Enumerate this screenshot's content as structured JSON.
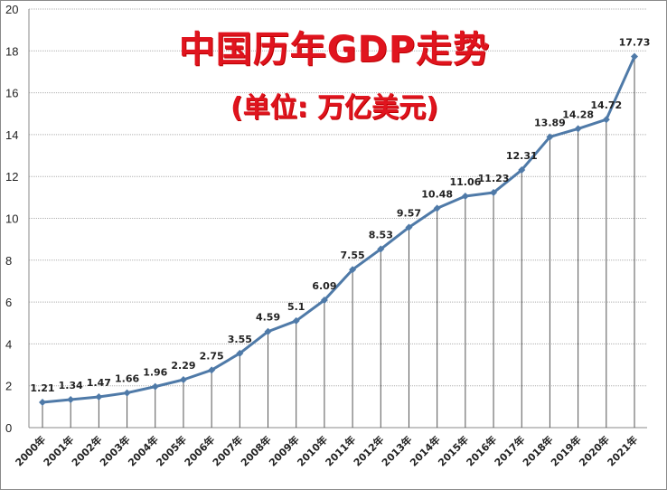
{
  "chart_data": {
    "type": "line",
    "title": "中国历年GDP走势",
    "subtitle": "(单位: 万亿美元)",
    "xlabel": "",
    "ylabel": "",
    "ylim": [
      0,
      20
    ],
    "yticks": [
      0,
      2,
      4,
      6,
      8,
      10,
      12,
      14,
      16,
      18,
      20
    ],
    "grid": true,
    "legend": null,
    "categories": [
      "2000年",
      "2001年",
      "2002年",
      "2003年",
      "2004年",
      "2005年",
      "2006年",
      "2007年",
      "2008年",
      "2009年",
      "2010年",
      "2011年",
      "2012年",
      "2013年",
      "2014年",
      "2015年",
      "2016年",
      "2017年",
      "2018年",
      "2019年",
      "2020年",
      "2021年"
    ],
    "series": [
      {
        "name": "GDP",
        "values": [
          1.21,
          1.34,
          1.47,
          1.66,
          1.96,
          2.29,
          2.75,
          3.55,
          4.59,
          5.1,
          6.09,
          7.55,
          8.53,
          9.57,
          10.48,
          11.06,
          11.23,
          12.31,
          13.89,
          14.28,
          14.72,
          17.73
        ],
        "labels": [
          "1.21",
          "1.34",
          "1.47",
          "1.66",
          "1.96",
          "2.29",
          "2.75",
          "3.55",
          "4.59",
          "5.1",
          "6.09",
          "7.55",
          "8.53",
          "9.57",
          "10.48",
          "11.06",
          "11.23",
          "12.31",
          "13.89",
          "14.28",
          "14.72",
          "17.73"
        ]
      }
    ],
    "colors": {
      "line": "#4f7aa8",
      "title": "#e0141e",
      "grid": "#b0b0b0",
      "drop_lines": "#555555"
    }
  }
}
